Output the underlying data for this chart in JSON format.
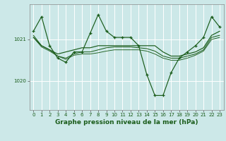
{
  "background_color": "#cce8e8",
  "grid_color": "#ffffff",
  "line_color": "#1a5c1a",
  "xlabel": "Graphe pression niveau de la mer (hPa)",
  "xlabel_fontsize": 6.5,
  "yticks": [
    1020,
    1021
  ],
  "ylim": [
    1019.3,
    1021.85
  ],
  "xlim": [
    -0.5,
    23.5
  ],
  "xticks": [
    0,
    1,
    2,
    3,
    4,
    5,
    6,
    7,
    8,
    9,
    10,
    11,
    12,
    13,
    14,
    15,
    16,
    17,
    18,
    19,
    20,
    21,
    22,
    23
  ],
  "series1": {
    "x": [
      0,
      1,
      2,
      3,
      4,
      5,
      6,
      7,
      8,
      9,
      10,
      11,
      12,
      13,
      14,
      15,
      16,
      17,
      18,
      19,
      20,
      21,
      22,
      23
    ],
    "y": [
      1021.2,
      1021.55,
      1020.85,
      1020.55,
      1020.45,
      1020.7,
      1020.7,
      1021.15,
      1021.6,
      1021.2,
      1021.05,
      1021.05,
      1021.05,
      1020.85,
      1020.15,
      1019.65,
      1019.65,
      1020.2,
      1020.55,
      1020.7,
      1020.85,
      1021.05,
      1021.55,
      1021.3
    ]
  },
  "series2": {
    "x": [
      0,
      1,
      2,
      3,
      4,
      5,
      6,
      7,
      8,
      9,
      10,
      11,
      12,
      13,
      14,
      15,
      16,
      17,
      18,
      19,
      20,
      21,
      22,
      23
    ],
    "y": [
      1021.05,
      1020.85,
      1020.75,
      1020.65,
      1020.7,
      1020.75,
      1020.8,
      1020.8,
      1020.85,
      1020.85,
      1020.85,
      1020.85,
      1020.85,
      1020.85,
      1020.85,
      1020.85,
      1020.7,
      1020.6,
      1020.6,
      1020.65,
      1020.7,
      1020.8,
      1021.1,
      1021.2
    ]
  },
  "series3": {
    "x": [
      0,
      1,
      2,
      3,
      4,
      5,
      6,
      7,
      8,
      9,
      10,
      11,
      12,
      13,
      14,
      15,
      16,
      17,
      18,
      19,
      20,
      21,
      22,
      23
    ],
    "y": [
      1021.1,
      1020.85,
      1020.75,
      1020.6,
      1020.55,
      1020.65,
      1020.7,
      1020.7,
      1020.75,
      1020.8,
      1020.82,
      1020.82,
      1020.82,
      1020.8,
      1020.78,
      1020.72,
      1020.6,
      1020.55,
      1020.55,
      1020.6,
      1020.65,
      1020.75,
      1021.05,
      1021.1
    ]
  },
  "series4": {
    "x": [
      0,
      1,
      2,
      3,
      4,
      5,
      6,
      7,
      8,
      9,
      10,
      11,
      12,
      13,
      14,
      15,
      16,
      17,
      18,
      19,
      20,
      21,
      22,
      23
    ],
    "y": [
      1021.05,
      1020.82,
      1020.72,
      1020.6,
      1020.52,
      1020.62,
      1020.65,
      1020.65,
      1020.68,
      1020.72,
      1020.75,
      1020.75,
      1020.75,
      1020.75,
      1020.72,
      1020.65,
      1020.55,
      1020.5,
      1020.5,
      1020.55,
      1020.62,
      1020.72,
      1021.0,
      1021.05
    ]
  }
}
